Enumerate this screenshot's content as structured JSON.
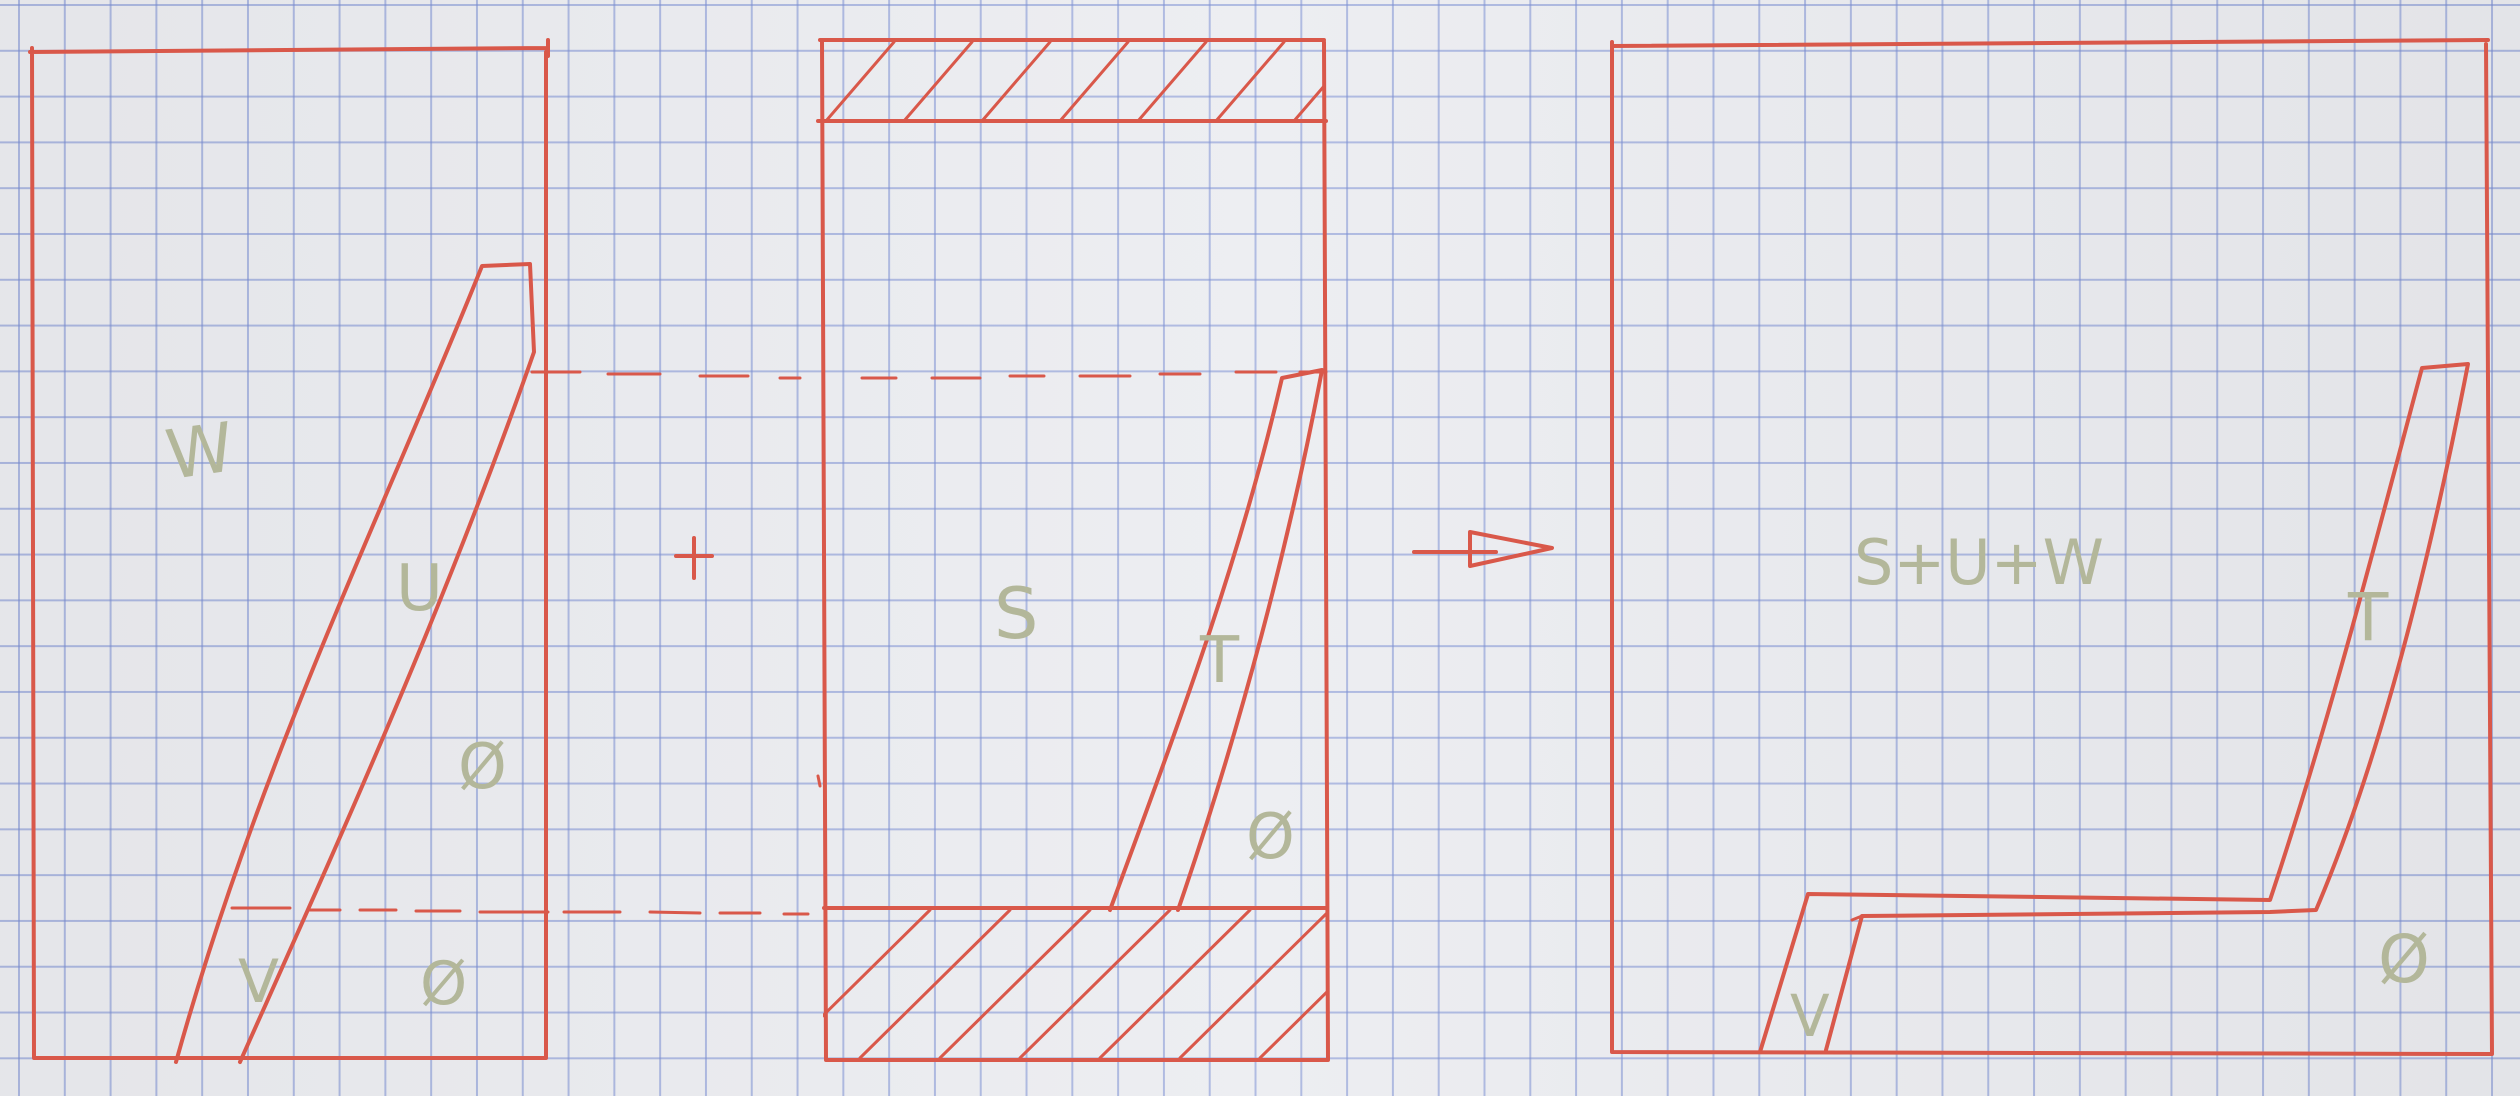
{
  "colors": {
    "ink": "#d9584a",
    "pencil": "#b3b79a",
    "grid": "#8b9bd8",
    "paper": "#ecedf1"
  },
  "labels": {
    "w": "W",
    "u": "U",
    "v": "V",
    "empty_left_upper": "Ø",
    "empty_left_lower": "Ø",
    "plus": "+",
    "s": "S",
    "t_middle": "T",
    "empty_middle": "Ø",
    "sum": "S+U+W",
    "t_right": "T",
    "v_right": "V",
    "empty_right": "Ø"
  }
}
